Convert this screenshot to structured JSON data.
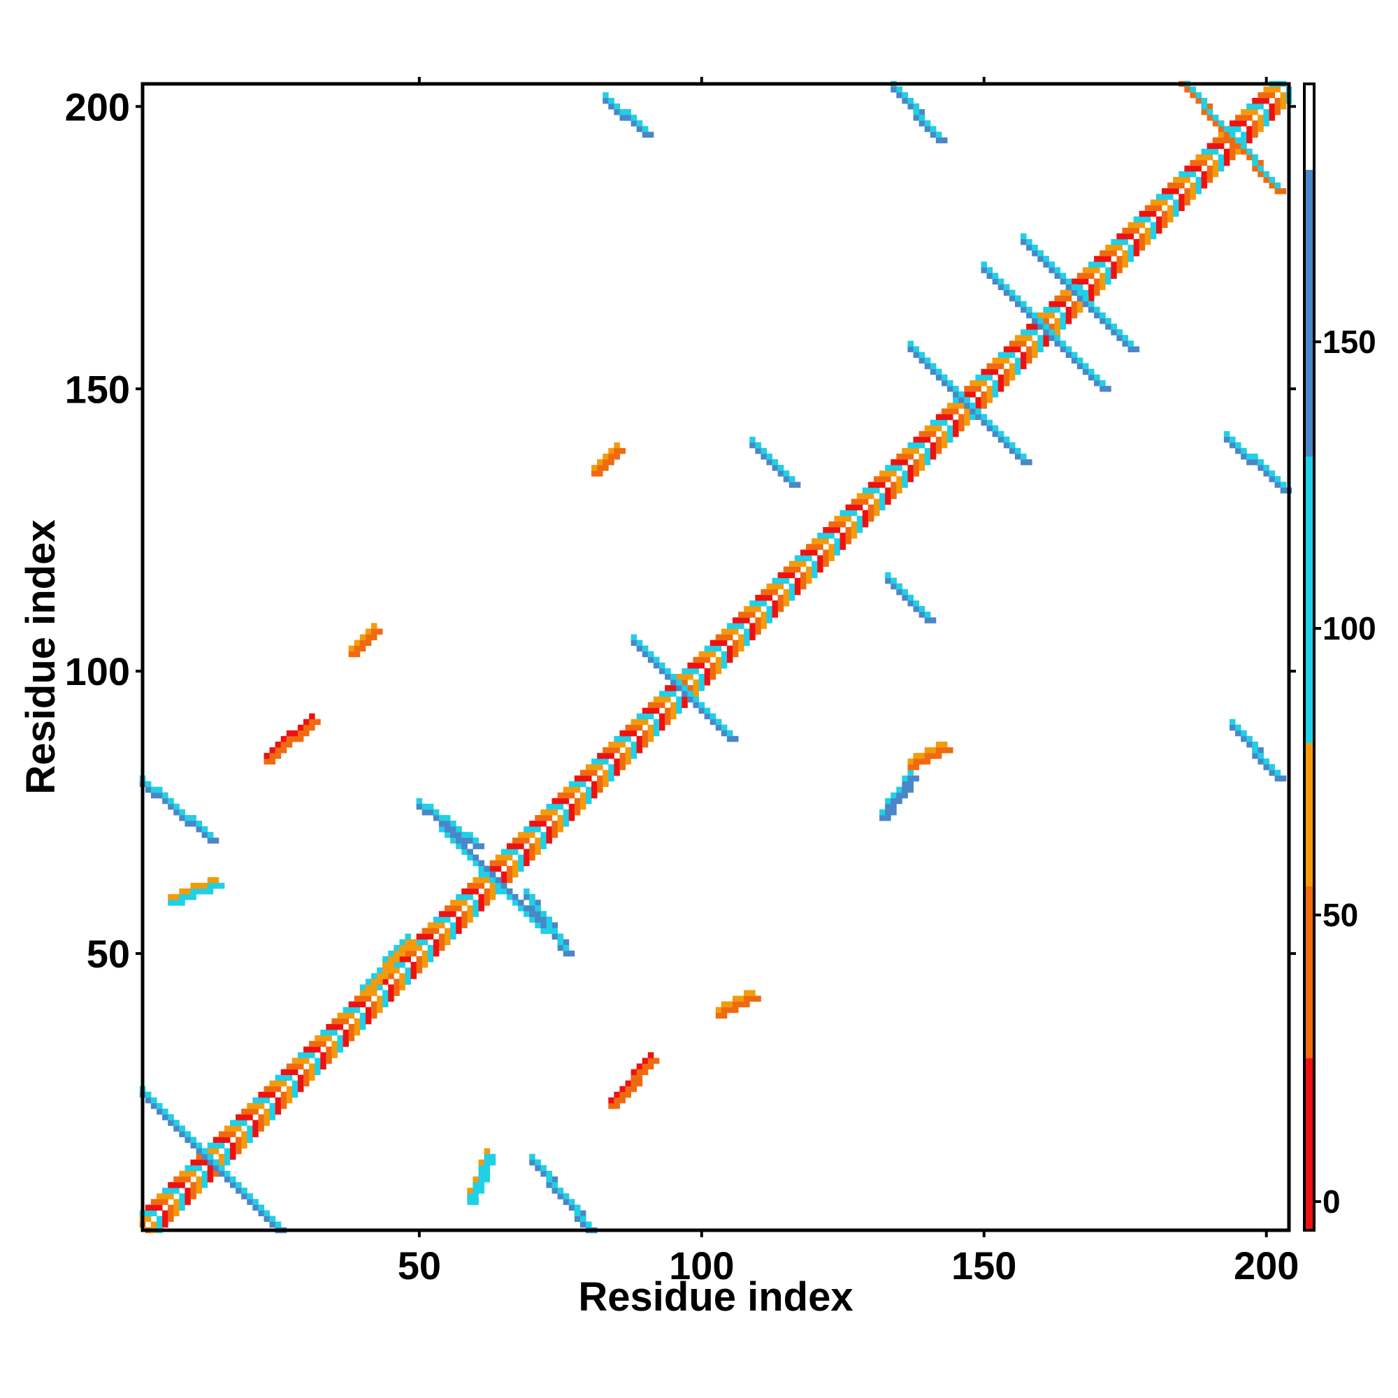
{
  "chart_data": {
    "type": "heatmap",
    "title": "",
    "xlabel": "Residue index",
    "ylabel": "Residue index",
    "xlim": [
      1,
      204
    ],
    "ylim": [
      1,
      204
    ],
    "xticks": [
      50,
      100,
      150,
      200
    ],
    "yticks": [
      50,
      100,
      150,
      200
    ],
    "colorbar": {
      "range": [
        -5,
        195
      ],
      "ticks": [
        0,
        50,
        100,
        150
      ],
      "bins": [
        {
          "from": -5,
          "to": 25,
          "color": "#ee1111"
        },
        {
          "from": 25,
          "to": 55,
          "color": "#f06a10"
        },
        {
          "from": 55,
          "to": 80,
          "color": "#f59a0a"
        },
        {
          "from": 80,
          "to": 130,
          "color": "#1fd0e6"
        },
        {
          "from": 130,
          "to": 180,
          "color": "#4a86c8"
        },
        {
          "from": 180,
          "to": 195,
          "color": "#ffffff"
        }
      ]
    },
    "grid": false,
    "legend": "colorbar-right",
    "features": [
      {
        "kind": "diagonal",
        "from": 1,
        "to": 204,
        "colors": [
          "#ee1111",
          "#f06a10",
          "#f59a0a",
          "#1fd0e6"
        ]
      },
      {
        "kind": "antidiagonal",
        "x": [
          1,
          25
        ],
        "y": [
          25,
          1
        ],
        "color": "#4a86c8",
        "edge": "#1fd0e6"
      },
      {
        "kind": "antidiagonal",
        "x": [
          1,
          13
        ],
        "y": [
          80,
          70
        ],
        "color": "#4a86c8",
        "edge": "#1fd0e6"
      },
      {
        "kind": "antidiagonal",
        "x": [
          70,
          80
        ],
        "y": [
          13,
          1
        ],
        "color": "#4a86c8",
        "edge": "#1fd0e6"
      },
      {
        "kind": "antidiagonal",
        "x": [
          50,
          60
        ],
        "y": [
          76,
          69
        ],
        "color": "#4a86c8",
        "edge": "#1fd0e6"
      },
      {
        "kind": "antidiagonal",
        "x": [
          69,
          76
        ],
        "y": [
          60,
          50
        ],
        "color": "#4a86c8",
        "edge": "#1fd0e6"
      },
      {
        "kind": "antidiagonal",
        "x": [
          54,
          72
        ],
        "y": [
          72,
          54
        ],
        "color": "#1fd0e6",
        "edge": "#4a86c8"
      },
      {
        "kind": "antidiagonal",
        "x": [
          88,
          105
        ],
        "y": [
          105,
          88
        ],
        "color": "#4a86c8",
        "edge": "#1fd0e6"
      },
      {
        "kind": "antidiagonal",
        "x": [
          109,
          116
        ],
        "y": [
          140,
          133
        ],
        "color": "#4a86c8",
        "edge": "#1fd0e6"
      },
      {
        "kind": "antidiagonal",
        "x": [
          133,
          140
        ],
        "y": [
          116,
          109
        ],
        "color": "#4a86c8",
        "edge": "#1fd0e6"
      },
      {
        "kind": "antidiagonal",
        "x": [
          137,
          157
        ],
        "y": [
          157,
          137
        ],
        "color": "#4a86c8",
        "edge": "#1fd0e6"
      },
      {
        "kind": "antidiagonal",
        "x": [
          150,
          171
        ],
        "y": [
          171,
          150
        ],
        "color": "#4a86c8",
        "edge": "#1fd0e6"
      },
      {
        "kind": "antidiagonal",
        "x": [
          157,
          176
        ],
        "y": [
          176,
          157
        ],
        "color": "#4a86c8",
        "edge": "#1fd0e6"
      },
      {
        "kind": "antidiagonal",
        "x": [
          83,
          90
        ],
        "y": [
          201,
          195
        ],
        "color": "#4a86c8",
        "edge": "#1fd0e6"
      },
      {
        "kind": "antidiagonal",
        "x": [
          134,
          142
        ],
        "y": [
          203,
          194
        ],
        "color": "#4a86c8",
        "edge": "#1fd0e6"
      },
      {
        "kind": "antidiagonal",
        "x": [
          193,
          203
        ],
        "y": [
          141,
          132
        ],
        "color": "#4a86c8",
        "edge": "#1fd0e6"
      },
      {
        "kind": "antidiagonal",
        "x": [
          194,
          202
        ],
        "y": [
          90,
          81
        ],
        "color": "#4a86c8",
        "edge": "#1fd0e6"
      },
      {
        "kind": "antidiagonal",
        "x": [
          185,
          202
        ],
        "y": [
          204,
          185
        ],
        "color": "#f06a10",
        "edge": "#1fd0e6"
      },
      {
        "kind": "parallel",
        "x": [
          23,
          31
        ],
        "y": [
          84,
          91
        ],
        "color": "#f06a10",
        "edge": "#ee1111"
      },
      {
        "kind": "parallel",
        "x": [
          84,
          91
        ],
        "y": [
          23,
          31
        ],
        "color": "#f06a10",
        "edge": "#ee1111"
      },
      {
        "kind": "parallel",
        "x": [
          38,
          42
        ],
        "y": [
          103,
          107
        ],
        "color": "#f06a10",
        "edge": "#f59a0a"
      },
      {
        "kind": "parallel",
        "x": [
          103,
          109
        ],
        "y": [
          39,
          42
        ],
        "color": "#f06a10",
        "edge": "#f59a0a"
      },
      {
        "kind": "parallel",
        "x": [
          40,
          48
        ],
        "y": [
          43,
          52
        ],
        "color": "#f59a0a",
        "edge": "#1fd0e6"
      },
      {
        "kind": "parallel",
        "x": [
          132,
          137
        ],
        "y": [
          74,
          81
        ],
        "color": "#4a86c8",
        "edge": "#1fd0e6"
      },
      {
        "kind": "parallel",
        "x": [
          137,
          143
        ],
        "y": [
          83,
          86
        ],
        "color": "#f06a10",
        "edge": "#f59a0a"
      },
      {
        "kind": "parallel",
        "x": [
          81,
          85
        ],
        "y": [
          135,
          139
        ],
        "color": "#f06a10",
        "edge": "#f59a0a"
      },
      {
        "kind": "parallel",
        "x": [
          6,
          14
        ],
        "y": [
          59,
          62
        ],
        "color": "#1fd0e6",
        "edge": "#f59a0a"
      },
      {
        "kind": "parallel",
        "x": [
          59,
          62
        ],
        "y": [
          6,
          14
        ],
        "color": "#1fd0e6",
        "edge": "#f59a0a"
      }
    ]
  }
}
